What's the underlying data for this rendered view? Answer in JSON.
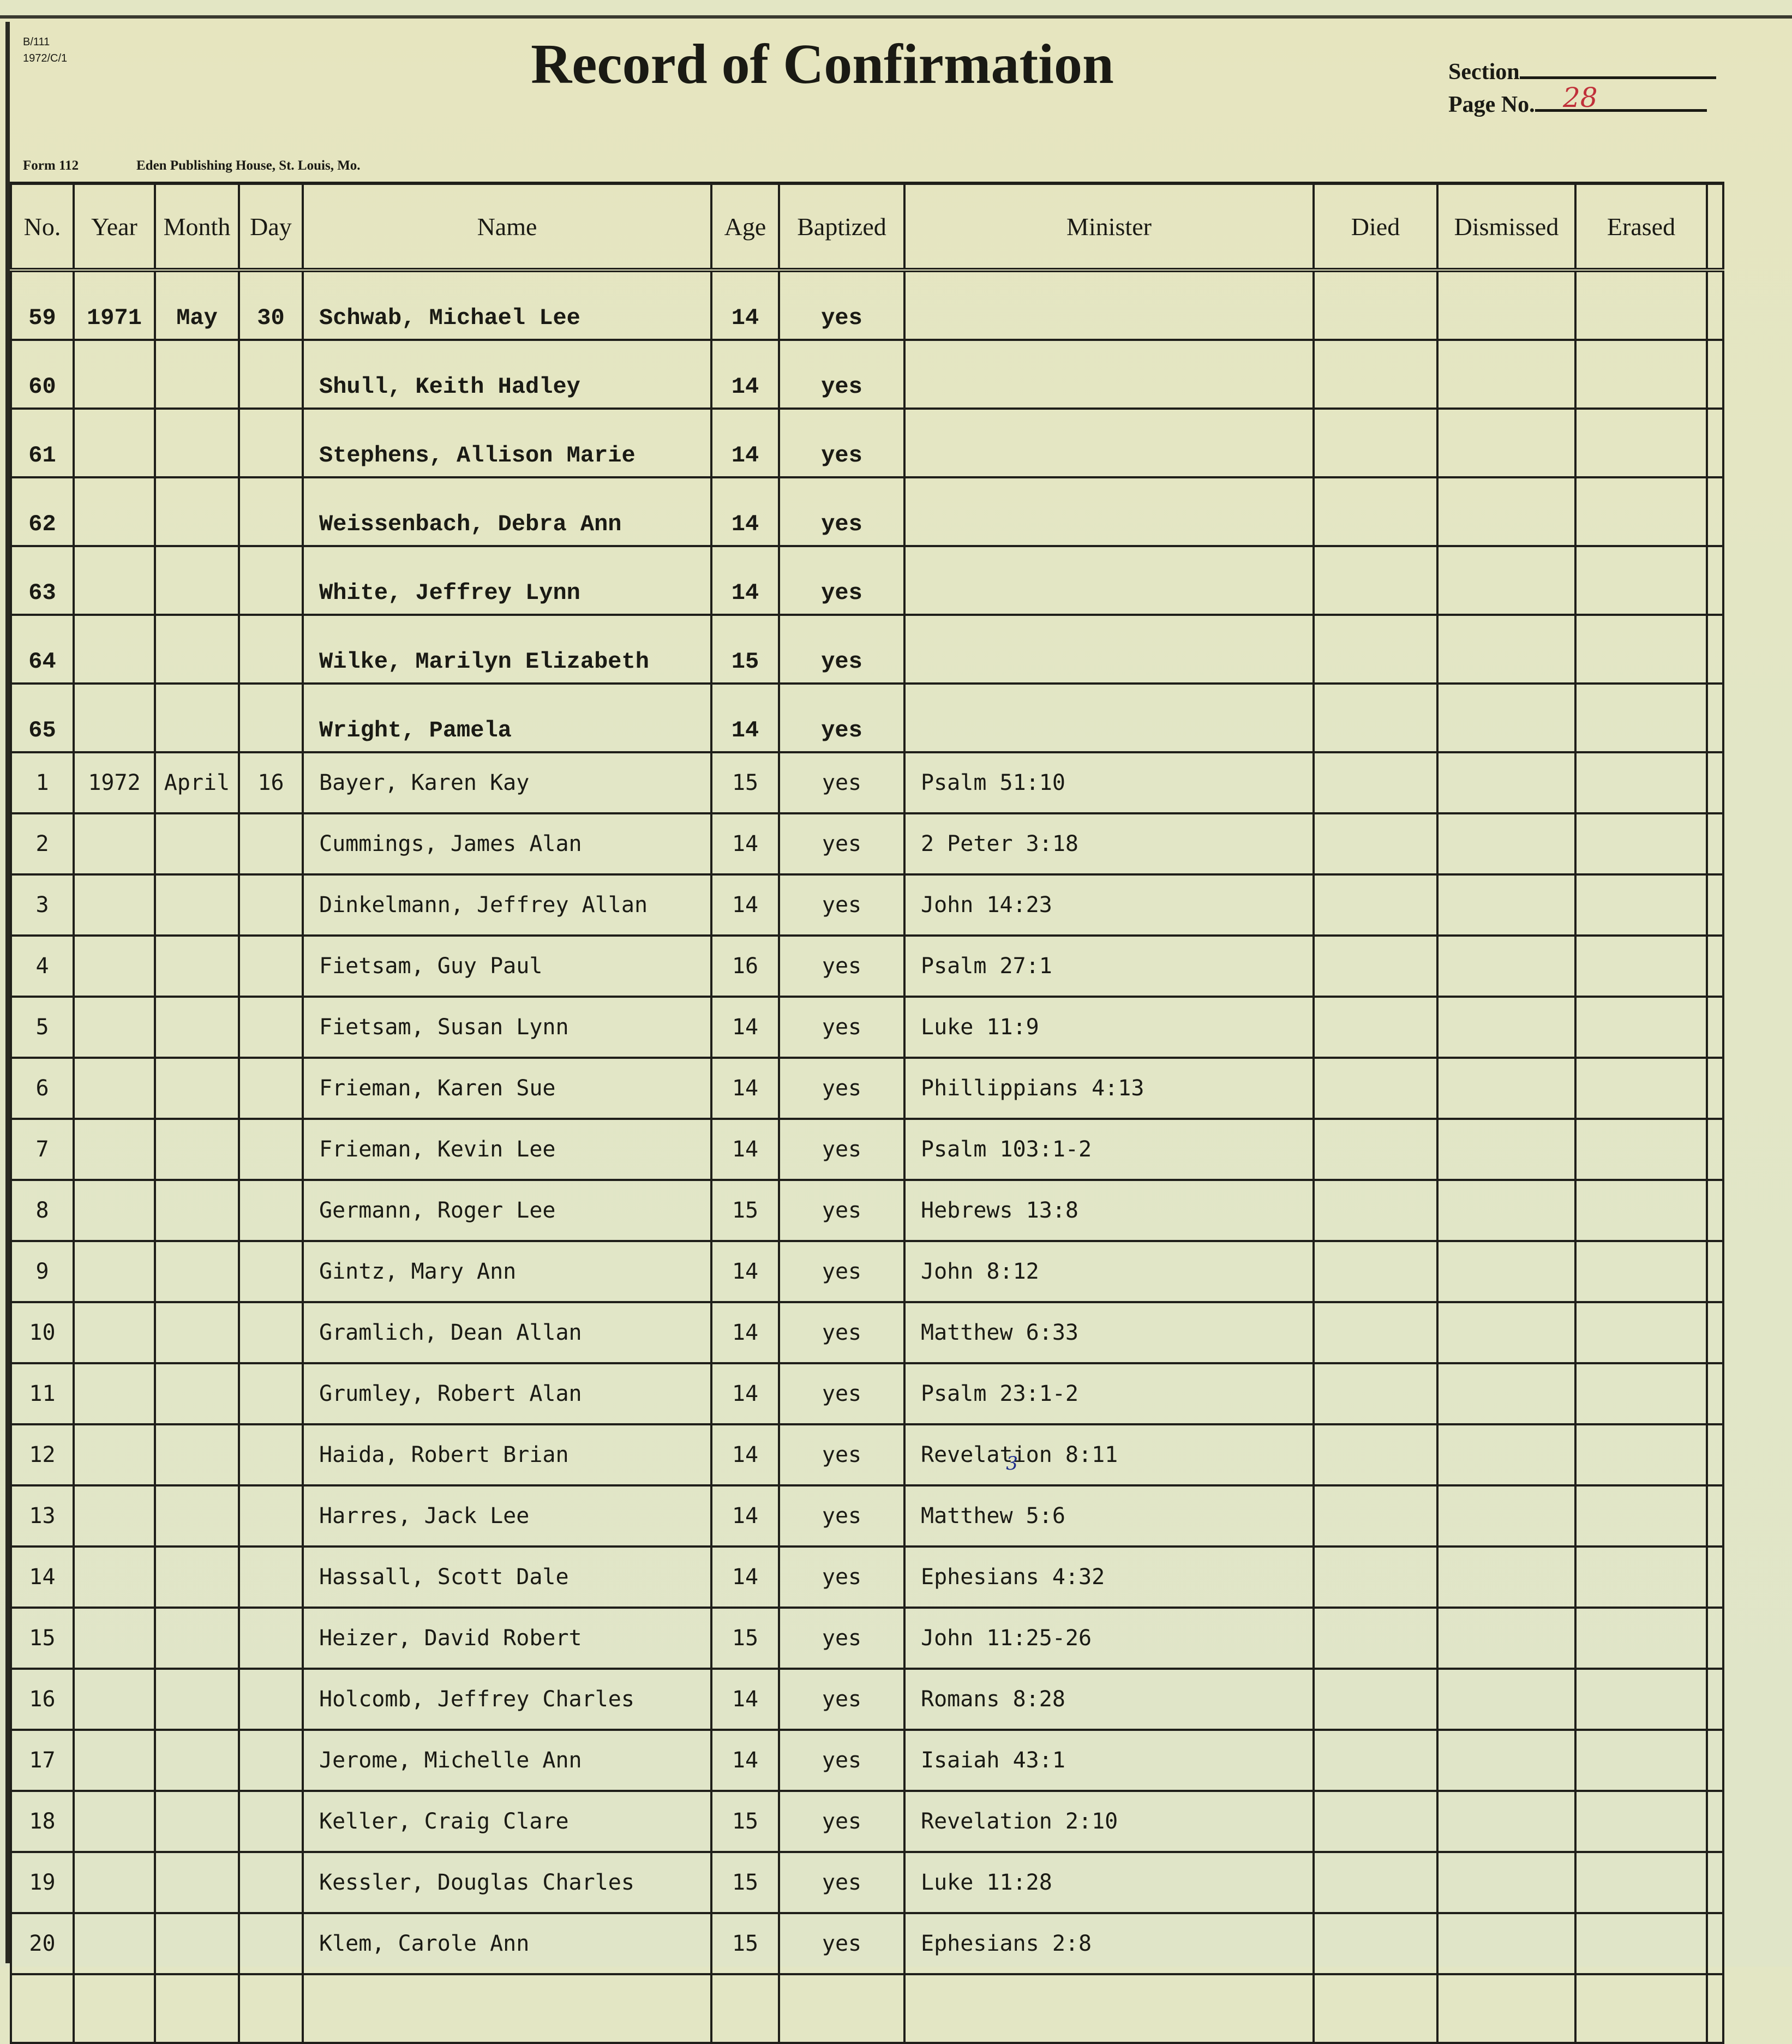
{
  "corner_codes": [
    "B/111",
    "1972/C/1"
  ],
  "title": "Record of Confirmation",
  "section_label": "Section",
  "section_value": "",
  "page_label": "Page No.",
  "page_value": "28",
  "form_label": "Form 112",
  "publisher": "Eden Publishing House, St. Louis, Mo.",
  "columns": [
    "No.",
    "Year",
    "Month",
    "Day",
    "Name",
    "Age",
    "Baptized",
    "Minister",
    "Died",
    "Dismissed",
    "Erased"
  ],
  "rows": [
    {
      "no": "59",
      "year": "1971",
      "month": "May",
      "day": "30",
      "name": "Schwab, Michael Lee",
      "age": "14",
      "baptized": "yes",
      "minister": ""
    },
    {
      "no": "60",
      "year": "",
      "month": "",
      "day": "",
      "name": "Shull, Keith Hadley",
      "age": "14",
      "baptized": "yes",
      "minister": ""
    },
    {
      "no": "61",
      "year": "",
      "month": "",
      "day": "",
      "name": "Stephens, Allison Marie",
      "age": "14",
      "baptized": "yes",
      "minister": ""
    },
    {
      "no": "62",
      "year": "",
      "month": "",
      "day": "",
      "name": "Weissenbach, Debra Ann",
      "age": "14",
      "baptized": "yes",
      "minister": ""
    },
    {
      "no": "63",
      "year": "",
      "month": "",
      "day": "",
      "name": "White, Jeffrey Lynn",
      "age": "14",
      "baptized": "yes",
      "minister": ""
    },
    {
      "no": "64",
      "year": "",
      "month": "",
      "day": "",
      "name": "Wilke, Marilyn Elizabeth",
      "age": "15",
      "baptized": "yes",
      "minister": ""
    },
    {
      "no": "65",
      "year": "",
      "month": "",
      "day": "",
      "name": "Wright, Pamela",
      "age": "14",
      "baptized": "yes",
      "minister": ""
    },
    {
      "no": "1",
      "year": "1972",
      "month": "April",
      "day": "16",
      "name": "Bayer, Karen Kay",
      "age": "15",
      "baptized": "yes",
      "minister": "Psalm 51:10"
    },
    {
      "no": "2",
      "year": "",
      "month": "",
      "day": "",
      "name": "Cummings, James Alan",
      "age": "14",
      "baptized": "yes",
      "minister": "2 Peter 3:18"
    },
    {
      "no": "3",
      "year": "",
      "month": "",
      "day": "",
      "name": "Dinkelmann, Jeffrey Allan",
      "age": "14",
      "baptized": "yes",
      "minister": "John 14:23"
    },
    {
      "no": "4",
      "year": "",
      "month": "",
      "day": "",
      "name": "Fietsam, Guy Paul",
      "age": "16",
      "baptized": "yes",
      "minister": "Psalm 27:1"
    },
    {
      "no": "5",
      "year": "",
      "month": "",
      "day": "",
      "name": "Fietsam, Susan Lynn",
      "age": "14",
      "baptized": "yes",
      "minister": "Luke 11:9"
    },
    {
      "no": "6",
      "year": "",
      "month": "",
      "day": "",
      "name": "Frieman, Karen Sue",
      "age": "14",
      "baptized": "yes",
      "minister": "Phillippians 4:13"
    },
    {
      "no": "7",
      "year": "",
      "month": "",
      "day": "",
      "name": "Frieman, Kevin Lee",
      "age": "14",
      "baptized": "yes",
      "minister": "Psalm 103:1-2"
    },
    {
      "no": "8",
      "year": "",
      "month": "",
      "day": "",
      "name": "Germann, Roger Lee",
      "age": "15",
      "baptized": "yes",
      "minister": "Hebrews 13:8"
    },
    {
      "no": "9",
      "year": "",
      "month": "",
      "day": "",
      "name": "Gintz, Mary Ann",
      "age": "14",
      "baptized": "yes",
      "minister": "John 8:12"
    },
    {
      "no": "10",
      "year": "",
      "month": "",
      "day": "",
      "name": "Gramlich, Dean Allan",
      "age": "14",
      "baptized": "yes",
      "minister": "Matthew 6:33"
    },
    {
      "no": "11",
      "year": "",
      "month": "",
      "day": "",
      "name": "Grumley, Robert Alan",
      "age": "14",
      "baptized": "yes",
      "minister": "Psalm 23:1-2"
    },
    {
      "no": "12",
      "year": "",
      "month": "",
      "day": "",
      "name": "Haida, Robert Brian",
      "age": "14",
      "baptized": "yes",
      "minister": "Revelation 8:11",
      "correction": "3"
    },
    {
      "no": "13",
      "year": "",
      "month": "",
      "day": "",
      "name": "Harres, Jack Lee",
      "age": "14",
      "baptized": "yes",
      "minister": "Matthew 5:6"
    },
    {
      "no": "14",
      "year": "",
      "month": "",
      "day": "",
      "name": "Hassall, Scott Dale",
      "age": "14",
      "baptized": "yes",
      "minister": "Ephesians 4:32"
    },
    {
      "no": "15",
      "year": "",
      "month": "",
      "day": "",
      "name": "Heizer, David Robert",
      "age": "15",
      "baptized": "yes",
      "minister": "John 11:25-26"
    },
    {
      "no": "16",
      "year": "",
      "month": "",
      "day": "",
      "name": "Holcomb, Jeffrey Charles",
      "age": "14",
      "baptized": "yes",
      "minister": "Romans 8:28"
    },
    {
      "no": "17",
      "year": "",
      "month": "",
      "day": "",
      "name": "Jerome, Michelle Ann",
      "age": "14",
      "baptized": "yes",
      "minister": "Isaiah 43:1"
    },
    {
      "no": "18",
      "year": "",
      "month": "",
      "day": "",
      "name": "Keller, Craig Clare",
      "age": "15",
      "baptized": "yes",
      "minister": "Revelation 2:10"
    },
    {
      "no": "19",
      "year": "",
      "month": "",
      "day": "",
      "name": "Kessler, Douglas Charles",
      "age": "15",
      "baptized": "yes",
      "minister": "Luke 11:28"
    },
    {
      "no": "20",
      "year": "",
      "month": "",
      "day": "",
      "name": "Klem, Carole Ann",
      "age": "15",
      "baptized": "yes",
      "minister": "Ephesians 2:8"
    }
  ]
}
